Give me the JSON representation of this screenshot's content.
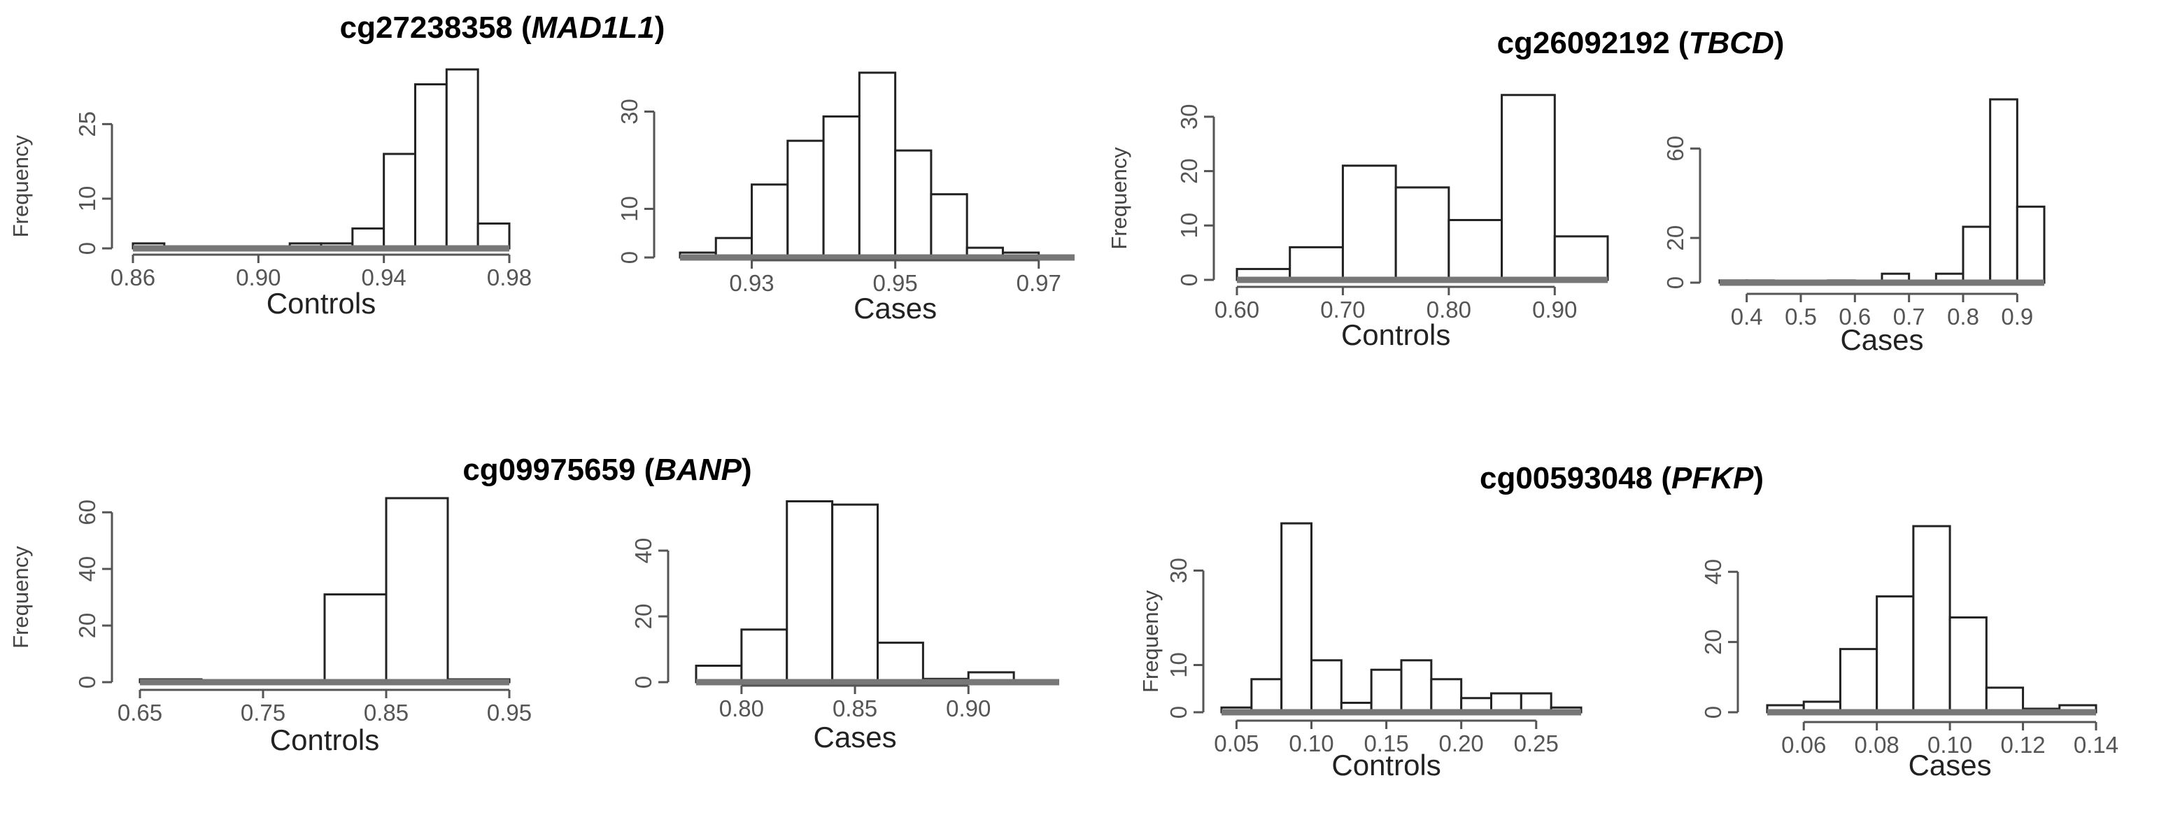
{
  "chart_data": [
    {
      "type": "bar",
      "title": "cg27238358",
      "gene": "MAD1L1",
      "xlabel": "Controls",
      "ylabel": "Frequency",
      "bin_edges": [
        0.86,
        0.87,
        0.88,
        0.89,
        0.9,
        0.91,
        0.92,
        0.93,
        0.94,
        0.95,
        0.96,
        0.97,
        0.98
      ],
      "values": [
        1,
        0,
        0,
        0,
        0,
        1,
        1,
        4,
        19,
        33,
        36,
        5
      ],
      "xticks": [
        0.86,
        0.9,
        0.94,
        0.98
      ],
      "xtick_labels": [
        "0.86",
        "0.90",
        "0.94",
        "0.98"
      ],
      "yticks": [
        0,
        10,
        25
      ],
      "ytick_labels": [
        "0",
        "10",
        "25"
      ],
      "xlim": [
        0.86,
        0.98
      ],
      "ylim": [
        0,
        38
      ]
    },
    {
      "type": "bar",
      "title": "",
      "xlabel": "Cases",
      "ylabel": "",
      "bin_edges": [
        0.92,
        0.925,
        0.93,
        0.935,
        0.94,
        0.945,
        0.95,
        0.955,
        0.96,
        0.965,
        0.97,
        0.975
      ],
      "values": [
        1,
        4,
        15,
        24,
        29,
        38,
        22,
        13,
        2,
        1,
        0
      ],
      "xticks": [
        0.93,
        0.95,
        0.97
      ],
      "xtick_labels": [
        "0.93",
        "0.95",
        "0.97"
      ],
      "yticks": [
        0,
        10,
        30
      ],
      "ytick_labels": [
        "0",
        "10",
        "30"
      ],
      "xlim": [
        0.92,
        0.975
      ],
      "ylim": [
        0,
        40
      ]
    },
    {
      "type": "bar",
      "title": "cg26092192",
      "gene": "TBCD",
      "xlabel": "Controls",
      "ylabel": "Frequency",
      "bin_edges": [
        0.6,
        0.65,
        0.7,
        0.75,
        0.8,
        0.85,
        0.9,
        0.95
      ],
      "values": [
        2,
        6,
        21,
        17,
        11,
        34,
        8
      ],
      "xticks": [
        0.6,
        0.7,
        0.8,
        0.9
      ],
      "xtick_labels": [
        "0.60",
        "0.70",
        "0.80",
        "0.90"
      ],
      "yticks": [
        0,
        10,
        20,
        30
      ],
      "ytick_labels": [
        "0",
        "10",
        "20",
        "30"
      ],
      "xlim": [
        0.6,
        0.95
      ],
      "ylim": [
        0,
        35
      ]
    },
    {
      "type": "bar",
      "title": "",
      "xlabel": "Cases",
      "ylabel": "",
      "bin_edges": [
        0.35,
        0.4,
        0.45,
        0.5,
        0.55,
        0.6,
        0.65,
        0.7,
        0.75,
        0.8,
        0.85,
        0.9,
        0.95
      ],
      "values": [
        1,
        1,
        0,
        0,
        1,
        0,
        4,
        0,
        4,
        25,
        82,
        34
      ],
      "xticks": [
        0.4,
        0.5,
        0.6,
        0.7,
        0.8,
        0.9
      ],
      "xtick_labels": [
        "0.4",
        "0.5",
        "0.6",
        "0.7",
        "0.8",
        "0.9"
      ],
      "yticks": [
        0,
        20,
        60
      ],
      "ytick_labels": [
        "0",
        "20",
        "60"
      ],
      "xlim": [
        0.35,
        0.95
      ],
      "ylim": [
        0,
        82
      ]
    },
    {
      "type": "bar",
      "title": "cg09975659",
      "gene": "BANP",
      "xlabel": "Controls",
      "ylabel": "Frequency",
      "bin_edges": [
        0.65,
        0.7,
        0.75,
        0.8,
        0.85,
        0.9,
        0.95
      ],
      "values": [
        1,
        0,
        0,
        31,
        65,
        1
      ],
      "xticks": [
        0.65,
        0.75,
        0.85,
        0.95
      ],
      "xtick_labels": [
        "0.65",
        "0.75",
        "0.85",
        "0.95"
      ],
      "yticks": [
        0,
        20,
        40,
        60
      ],
      "ytick_labels": [
        "0",
        "20",
        "40",
        "60"
      ],
      "xlim": [
        0.65,
        0.95
      ],
      "ylim": [
        0,
        65
      ]
    },
    {
      "type": "bar",
      "title": "",
      "xlabel": "Cases",
      "ylabel": "",
      "bin_edges": [
        0.78,
        0.8,
        0.82,
        0.84,
        0.86,
        0.88,
        0.9,
        0.92,
        0.94
      ],
      "values": [
        5,
        16,
        55,
        54,
        12,
        1,
        3,
        0
      ],
      "xticks": [
        0.8,
        0.85,
        0.9
      ],
      "xtick_labels": [
        "0.80",
        "0.85",
        "0.90"
      ],
      "yticks": [
        0,
        20,
        40
      ],
      "ytick_labels": [
        "0",
        "20",
        "40"
      ],
      "xlim": [
        0.78,
        0.94
      ],
      "ylim": [
        0,
        50
      ]
    },
    {
      "type": "bar",
      "title": "cg00593048",
      "gene": "PFKP",
      "xlabel": "Controls",
      "ylabel": "Frequency",
      "bin_edges": [
        0.04,
        0.06,
        0.08,
        0.1,
        0.12,
        0.14,
        0.16,
        0.18,
        0.2,
        0.22,
        0.24,
        0.26,
        0.28
      ],
      "values": [
        1,
        7,
        40,
        11,
        2,
        9,
        11,
        7,
        3,
        4,
        4,
        1
      ],
      "xticks": [
        0.05,
        0.1,
        0.15,
        0.2,
        0.25
      ],
      "xtick_labels": [
        "0.05",
        "0.10",
        "0.15",
        "0.20",
        "0.25"
      ],
      "yticks": [
        0,
        10,
        30
      ],
      "ytick_labels": [
        "0",
        "10",
        "30"
      ],
      "xlim": [
        0.04,
        0.28
      ],
      "ylim": [
        0,
        40
      ]
    },
    {
      "type": "bar",
      "title": "",
      "xlabel": "Cases",
      "ylabel": "",
      "bin_edges": [
        0.05,
        0.06,
        0.07,
        0.08,
        0.09,
        0.1,
        0.11,
        0.12,
        0.13,
        0.14
      ],
      "values": [
        2,
        3,
        18,
        33,
        53,
        27,
        7,
        1,
        2
      ],
      "xticks": [
        0.06,
        0.08,
        0.1,
        0.12,
        0.14
      ],
      "xtick_labels": [
        "0.06",
        "0.08",
        "0.10",
        "0.12",
        "0.14"
      ],
      "yticks": [
        0,
        20,
        40
      ],
      "ytick_labels": [
        "0",
        "20",
        "40"
      ],
      "xlim": [
        0.05,
        0.14
      ],
      "ylim": [
        0,
        53
      ]
    }
  ]
}
